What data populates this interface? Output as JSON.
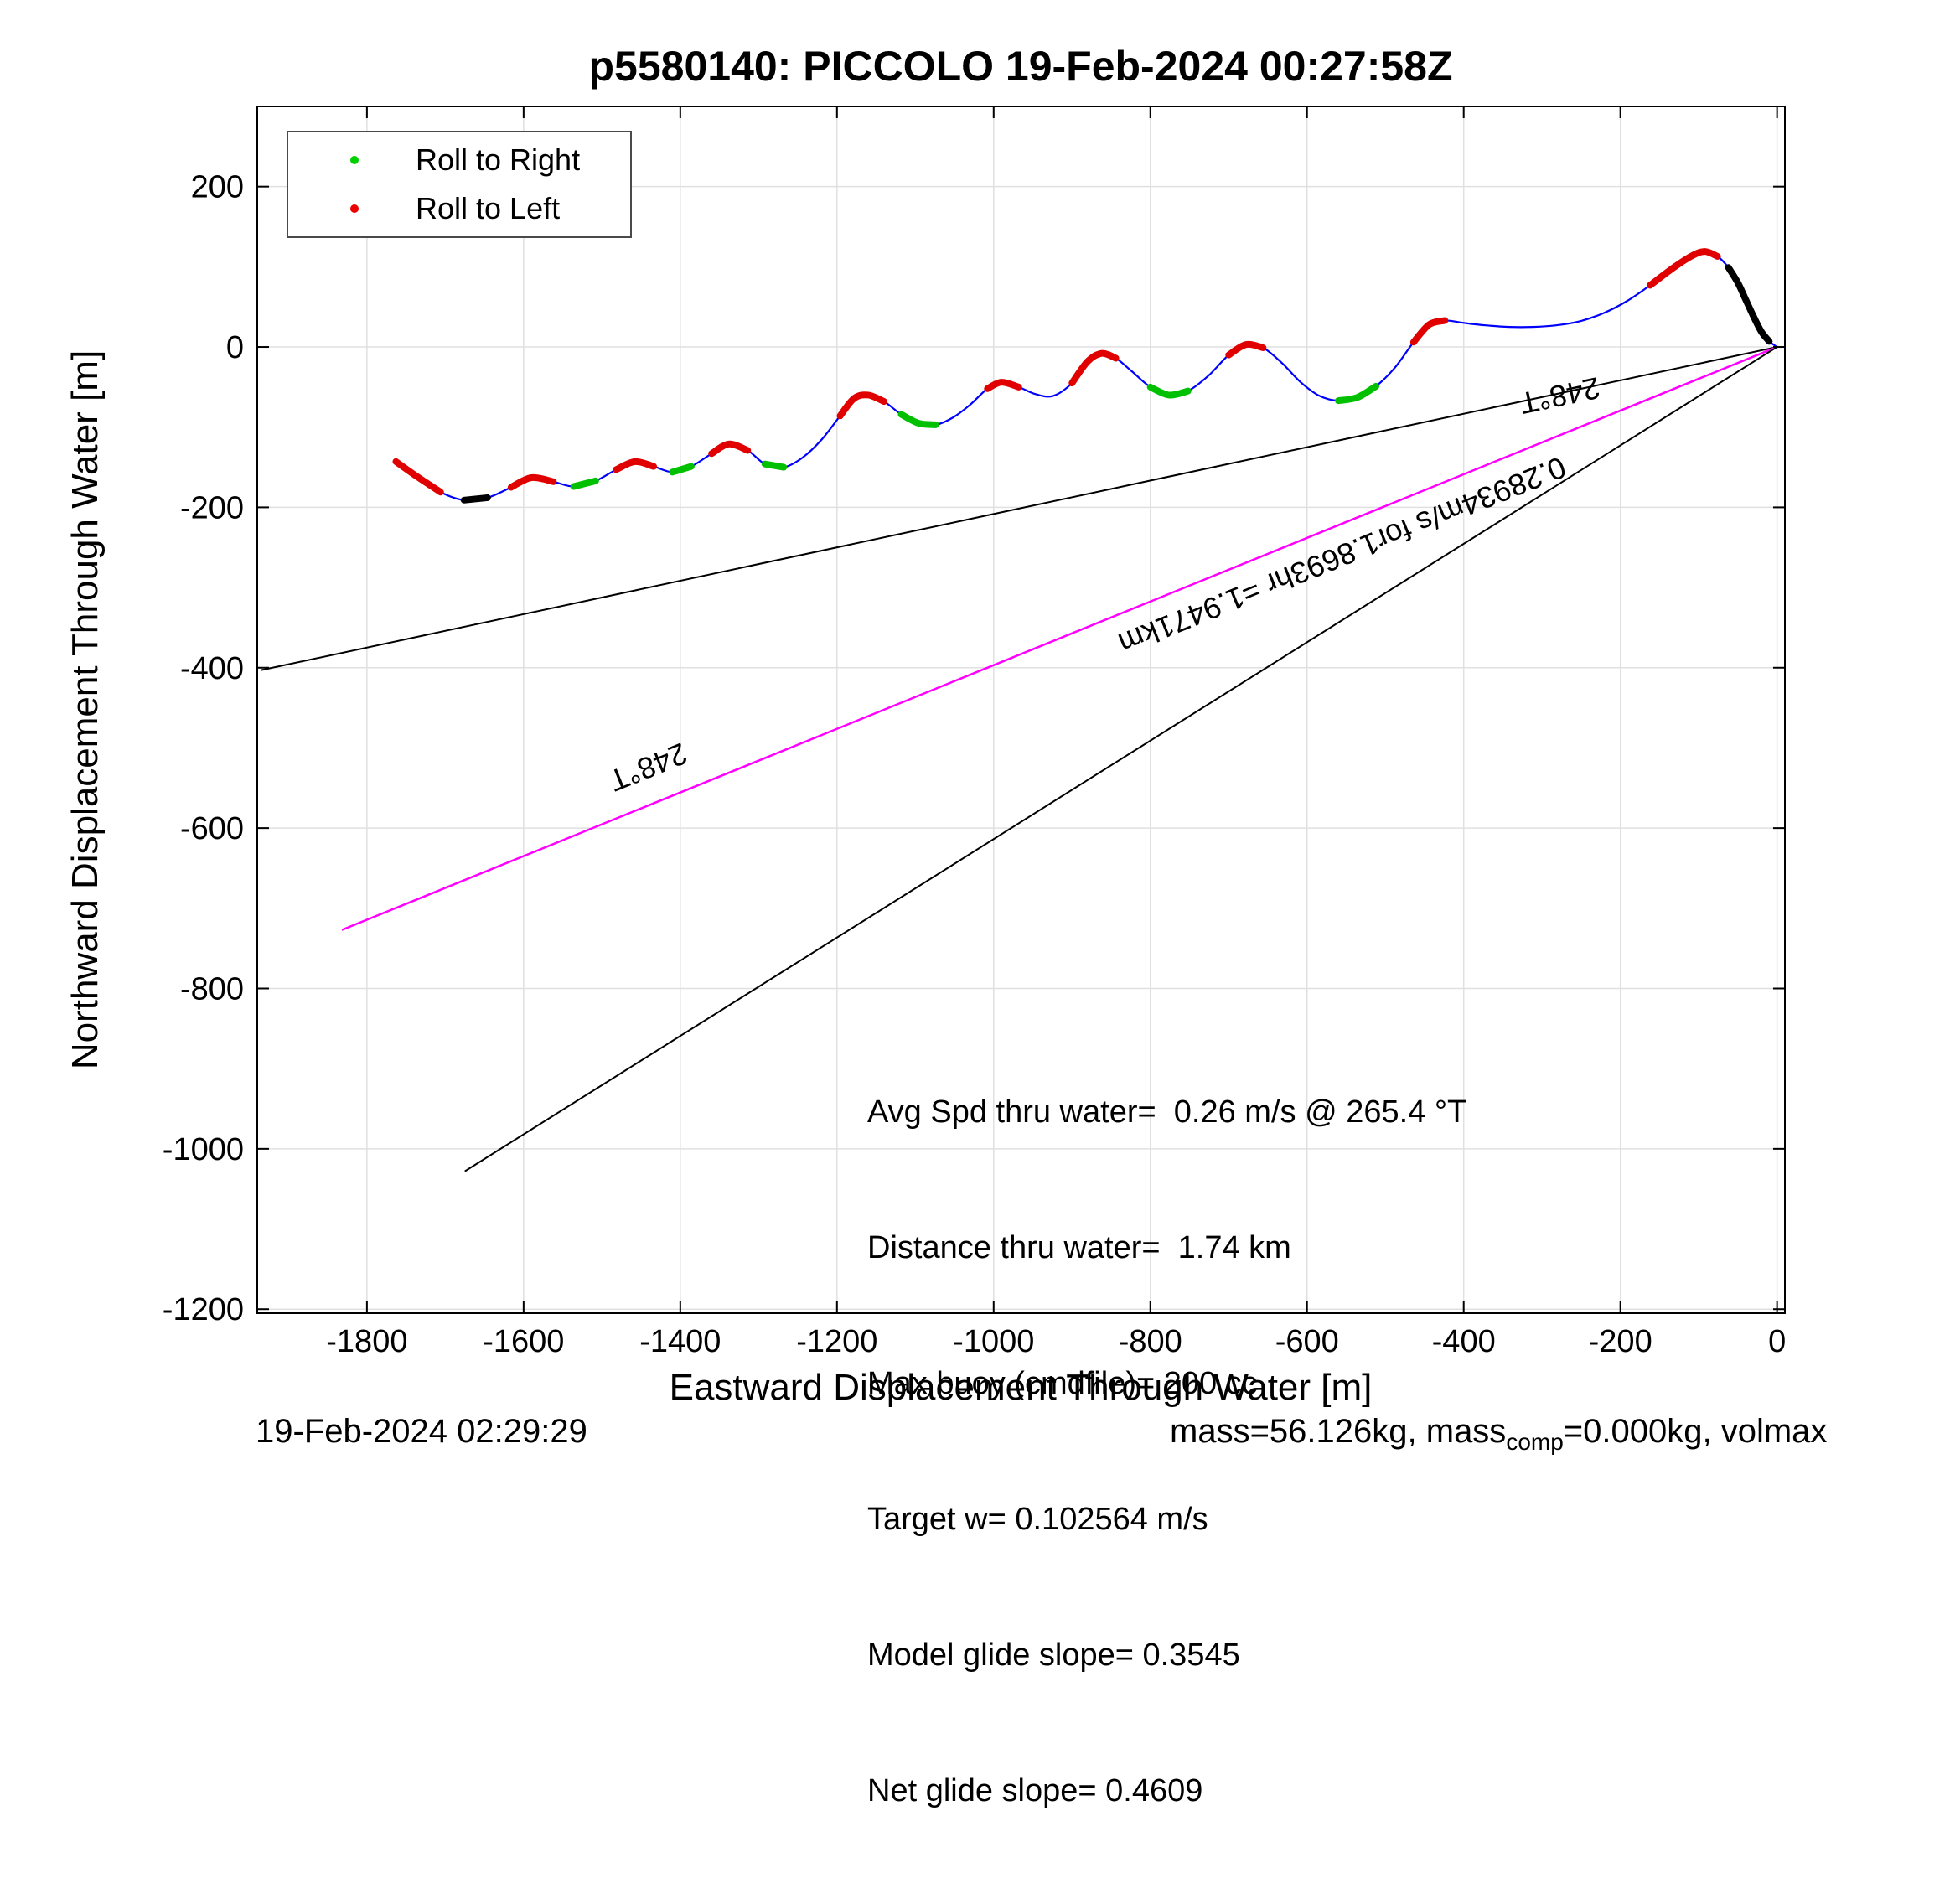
{
  "title": "p5580140: PICCOLO 19-Feb-2024 00:27:58Z",
  "legend": {
    "items": [
      {
        "label": "Roll to Right",
        "color": "#00d000",
        "marker": "dot-icon"
      },
      {
        "label": "Roll to Left",
        "color": "#ee0000",
        "marker": "dot-icon"
      }
    ]
  },
  "annotations": {
    "lines": [
      "Avg Spd thru water=  0.26 m/s @ 265.4 °T",
      "Distance thru water=  1.74 km",
      "Max buoy (cmdfile)= 200 cc",
      "Target w= 0.102564 m/s",
      "Model glide slope= 0.3545",
      "Net glide slope= 0.4609"
    ]
  },
  "footer": {
    "left_timestamp": "19-Feb-2024 02:29:29",
    "right_pre": "mass=56.126kg, mass",
    "right_sub": "comp",
    "right_post": "=0.000kg, volmax"
  },
  "chart_data": {
    "type": "line",
    "title": "p5580140: PICCOLO 19-Feb-2024 00:27:58Z",
    "xlabel": "Eastward Displacement Through Water [m]",
    "ylabel": "Northward Displacement Through Water [m]",
    "xlim": [
      -1940,
      10
    ],
    "ylim": [
      -1205,
      300
    ],
    "grid": true,
    "xticks": {
      "values": [
        -1800,
        -1600,
        -1400,
        -1200,
        -1000,
        -800,
        -600,
        -400,
        -200,
        0
      ],
      "labels": [
        "-1800",
        "-1600",
        "-1400",
        "-1200",
        "-1000",
        "-800",
        "-600",
        "-400",
        "-200",
        "0"
      ]
    },
    "yticks": {
      "values": [
        -1200,
        -1000,
        -800,
        -600,
        -400,
        -200,
        0,
        200
      ],
      "labels": [
        "-1200",
        "-1000",
        "-800",
        "-600",
        "-400",
        "-200",
        "0",
        "200"
      ]
    },
    "colors": {
      "trajectory": "#0000ff",
      "roll_right": "#00c000",
      "roll_left": "#e00000",
      "stall": "#000000",
      "grid": "#e0e0e0",
      "bearing_line": "#000000",
      "track_made_good": "#ff00ff"
    },
    "trajectory": [
      [
        -1763,
        -143
      ],
      [
        -1737,
        -161
      ],
      [
        -1706,
        -181
      ],
      [
        -1676,
        -191
      ],
      [
        -1646,
        -188
      ],
      [
        -1616,
        -175
      ],
      [
        -1590,
        -163
      ],
      [
        -1562,
        -168
      ],
      [
        -1536,
        -174
      ],
      [
        -1508,
        -167
      ],
      [
        -1482,
        -153
      ],
      [
        -1458,
        -143
      ],
      [
        -1434,
        -149
      ],
      [
        -1410,
        -156
      ],
      [
        -1386,
        -149
      ],
      [
        -1360,
        -133
      ],
      [
        -1338,
        -121
      ],
      [
        -1314,
        -129
      ],
      [
        -1292,
        -146
      ],
      [
        -1268,
        -150
      ],
      [
        -1244,
        -138
      ],
      [
        -1220,
        -116
      ],
      [
        -1196,
        -86
      ],
      [
        -1178,
        -64
      ],
      [
        -1160,
        -60
      ],
      [
        -1140,
        -68
      ],
      [
        -1118,
        -84
      ],
      [
        -1096,
        -95
      ],
      [
        -1074,
        -97
      ],
      [
        -1052,
        -88
      ],
      [
        -1030,
        -72
      ],
      [
        -1008,
        -52
      ],
      [
        -990,
        -44
      ],
      [
        -968,
        -50
      ],
      [
        -946,
        -59
      ],
      [
        -924,
        -61
      ],
      [
        -900,
        -45
      ],
      [
        -880,
        -18
      ],
      [
        -862,
        -8
      ],
      [
        -844,
        -14
      ],
      [
        -824,
        -30
      ],
      [
        -800,
        -50
      ],
      [
        -776,
        -60
      ],
      [
        -752,
        -55
      ],
      [
        -726,
        -36
      ],
      [
        -700,
        -10
      ],
      [
        -678,
        3
      ],
      [
        -656,
        -1
      ],
      [
        -632,
        -20
      ],
      [
        -608,
        -44
      ],
      [
        -584,
        -61
      ],
      [
        -560,
        -67
      ],
      [
        -536,
        -63
      ],
      [
        -512,
        -49
      ],
      [
        -488,
        -26
      ],
      [
        -464,
        6
      ],
      [
        -444,
        28
      ],
      [
        -424,
        33
      ],
      [
        -400,
        30
      ],
      [
        -372,
        27
      ],
      [
        -342,
        25
      ],
      [
        -312,
        25
      ],
      [
        -282,
        27
      ],
      [
        -252,
        32
      ],
      [
        -222,
        42
      ],
      [
        -192,
        57
      ],
      [
        -162,
        77
      ],
      [
        -132,
        99
      ],
      [
        -108,
        114
      ],
      [
        -92,
        119
      ],
      [
        -76,
        113
      ],
      [
        -62,
        99
      ],
      [
        -50,
        80
      ],
      [
        -40,
        59
      ],
      [
        -30,
        38
      ],
      [
        -20,
        19
      ],
      [
        -10,
        7
      ],
      [
        0,
        0
      ]
    ],
    "segments": [
      {
        "from": 0,
        "to": 2,
        "color": "#e00000"
      },
      {
        "from": 3,
        "to": 4,
        "color": "#000000"
      },
      {
        "from": 5,
        "to": 7,
        "color": "#e00000"
      },
      {
        "from": 8,
        "to": 9,
        "color": "#00c000"
      },
      {
        "from": 10,
        "to": 12,
        "color": "#e00000"
      },
      {
        "from": 13,
        "to": 14,
        "color": "#00c000"
      },
      {
        "from": 15,
        "to": 17,
        "color": "#e00000"
      },
      {
        "from": 18,
        "to": 19,
        "color": "#00c000"
      },
      {
        "from": 22,
        "to": 25,
        "color": "#e00000"
      },
      {
        "from": 26,
        "to": 28,
        "color": "#00c000"
      },
      {
        "from": 31,
        "to": 33,
        "color": "#e00000"
      },
      {
        "from": 36,
        "to": 39,
        "color": "#e00000"
      },
      {
        "from": 41,
        "to": 43,
        "color": "#00c000"
      },
      {
        "from": 45,
        "to": 47,
        "color": "#e00000"
      },
      {
        "from": 51,
        "to": 53,
        "color": "#00c000"
      },
      {
        "from": 55,
        "to": 57,
        "color": "#e00000"
      },
      {
        "from": 66,
        "to": 70,
        "color": "#e00000"
      },
      {
        "from": 71,
        "to": 76,
        "color": "#000000"
      }
    ],
    "guide_lines": [
      {
        "x1": 0,
        "y1": 0,
        "x2": -1935,
        "y2": -403,
        "color": "#000000",
        "width": 2
      },
      {
        "x1": 0,
        "y1": 0,
        "x2": -1832,
        "y2": -727,
        "color": "#ff00ff",
        "width": 2.5
      },
      {
        "x1": 0,
        "y1": 0,
        "x2": -1675,
        "y2": -1028,
        "color": "#000000",
        "width": 2
      }
    ],
    "rotated_labels": [
      {
        "text": "248°T",
        "x": -280,
        "y": -48,
        "angle": 168
      },
      {
        "text": "248°T",
        "x": -1446,
        "y": -512,
        "angle": 158
      },
      {
        "text": "0.28934m/s for1.8693hr =1.9471km",
        "x": -560,
        "y": -248,
        "angle": 158
      }
    ]
  }
}
